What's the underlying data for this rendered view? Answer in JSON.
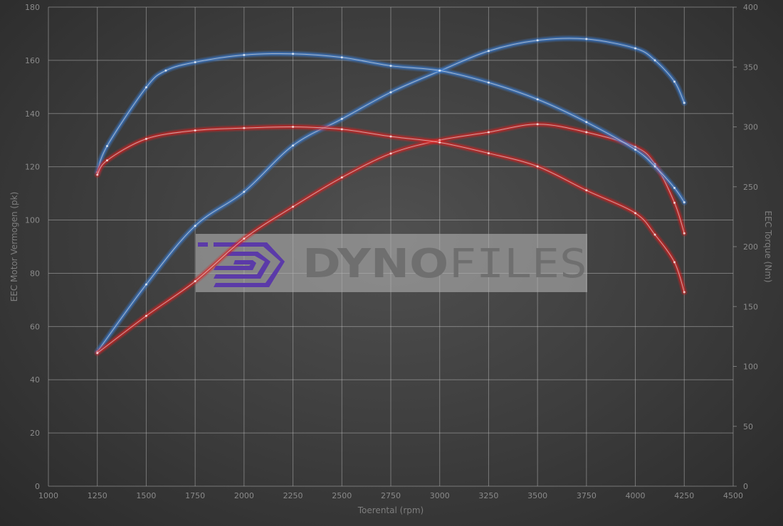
{
  "chart_data": {
    "type": "line",
    "title": "",
    "xlabel": "Toerental (rpm)",
    "ylabel": "EEC Motor Vermogen (pk)",
    "y2label": "EEC Torque (Nm)",
    "xlim": [
      1000,
      4500
    ],
    "ylim": [
      0,
      180
    ],
    "y2lim": [
      0,
      400
    ],
    "xticks": [
      1000,
      1250,
      1500,
      1750,
      2000,
      2250,
      2500,
      2750,
      3000,
      3250,
      3500,
      3750,
      4000,
      4250,
      4500
    ],
    "yticks": [
      0,
      20,
      40,
      60,
      80,
      100,
      120,
      140,
      160,
      180
    ],
    "y2ticks": [
      0,
      50,
      100,
      150,
      200,
      250,
      300,
      350,
      400
    ],
    "grid": true,
    "legend": "none",
    "watermark": "DYNOFILES",
    "colors": {
      "stock": "#e02020",
      "tuned": "#3a7fd8",
      "watermark_logo": "#5b3aa8"
    },
    "series": [
      {
        "axis": "left",
        "color": "#3a7fd8",
        "x": [
          1250,
          1500,
          1750,
          2000,
          2250,
          2500,
          2750,
          3000,
          3250,
          3500,
          3750,
          4000,
          4100,
          4200,
          4250
        ],
        "y": [
          50.5,
          75.8,
          97.8,
          110.6,
          128,
          138,
          148,
          156,
          163.5,
          167.5,
          168,
          164.5,
          160,
          152,
          144
        ]
      },
      {
        "axis": "left",
        "color": "#e02020",
        "x": [
          1250,
          1500,
          1750,
          2000,
          2250,
          2500,
          2750,
          3000,
          3250,
          3500,
          3750,
          4000,
          4100,
          4200,
          4250
        ],
        "y": [
          50,
          64,
          77,
          93,
          105,
          116,
          125,
          130,
          133,
          136,
          133,
          127.5,
          121,
          106.5,
          95
        ]
      },
      {
        "axis": "right",
        "color": "#3a7fd8",
        "x": [
          1250,
          1300,
          1500,
          1600,
          1750,
          2000,
          2250,
          2500,
          2750,
          3000,
          3250,
          3500,
          3750,
          4000,
          4100,
          4200,
          4250
        ],
        "y": [
          262,
          284,
          333,
          347,
          354,
          360,
          361,
          358,
          351,
          347,
          337,
          323,
          304,
          281,
          267,
          249,
          237
        ]
      },
      {
        "axis": "right",
        "color": "#e02020",
        "x": [
          1250,
          1300,
          1500,
          1750,
          2000,
          2250,
          2500,
          2750,
          3000,
          3250,
          3500,
          3750,
          4000,
          4100,
          4200,
          4250
        ],
        "y": [
          260,
          272,
          290,
          297,
          299,
          300,
          298,
          292,
          287,
          278,
          267,
          247,
          228,
          210,
          187,
          162
        ]
      }
    ]
  }
}
